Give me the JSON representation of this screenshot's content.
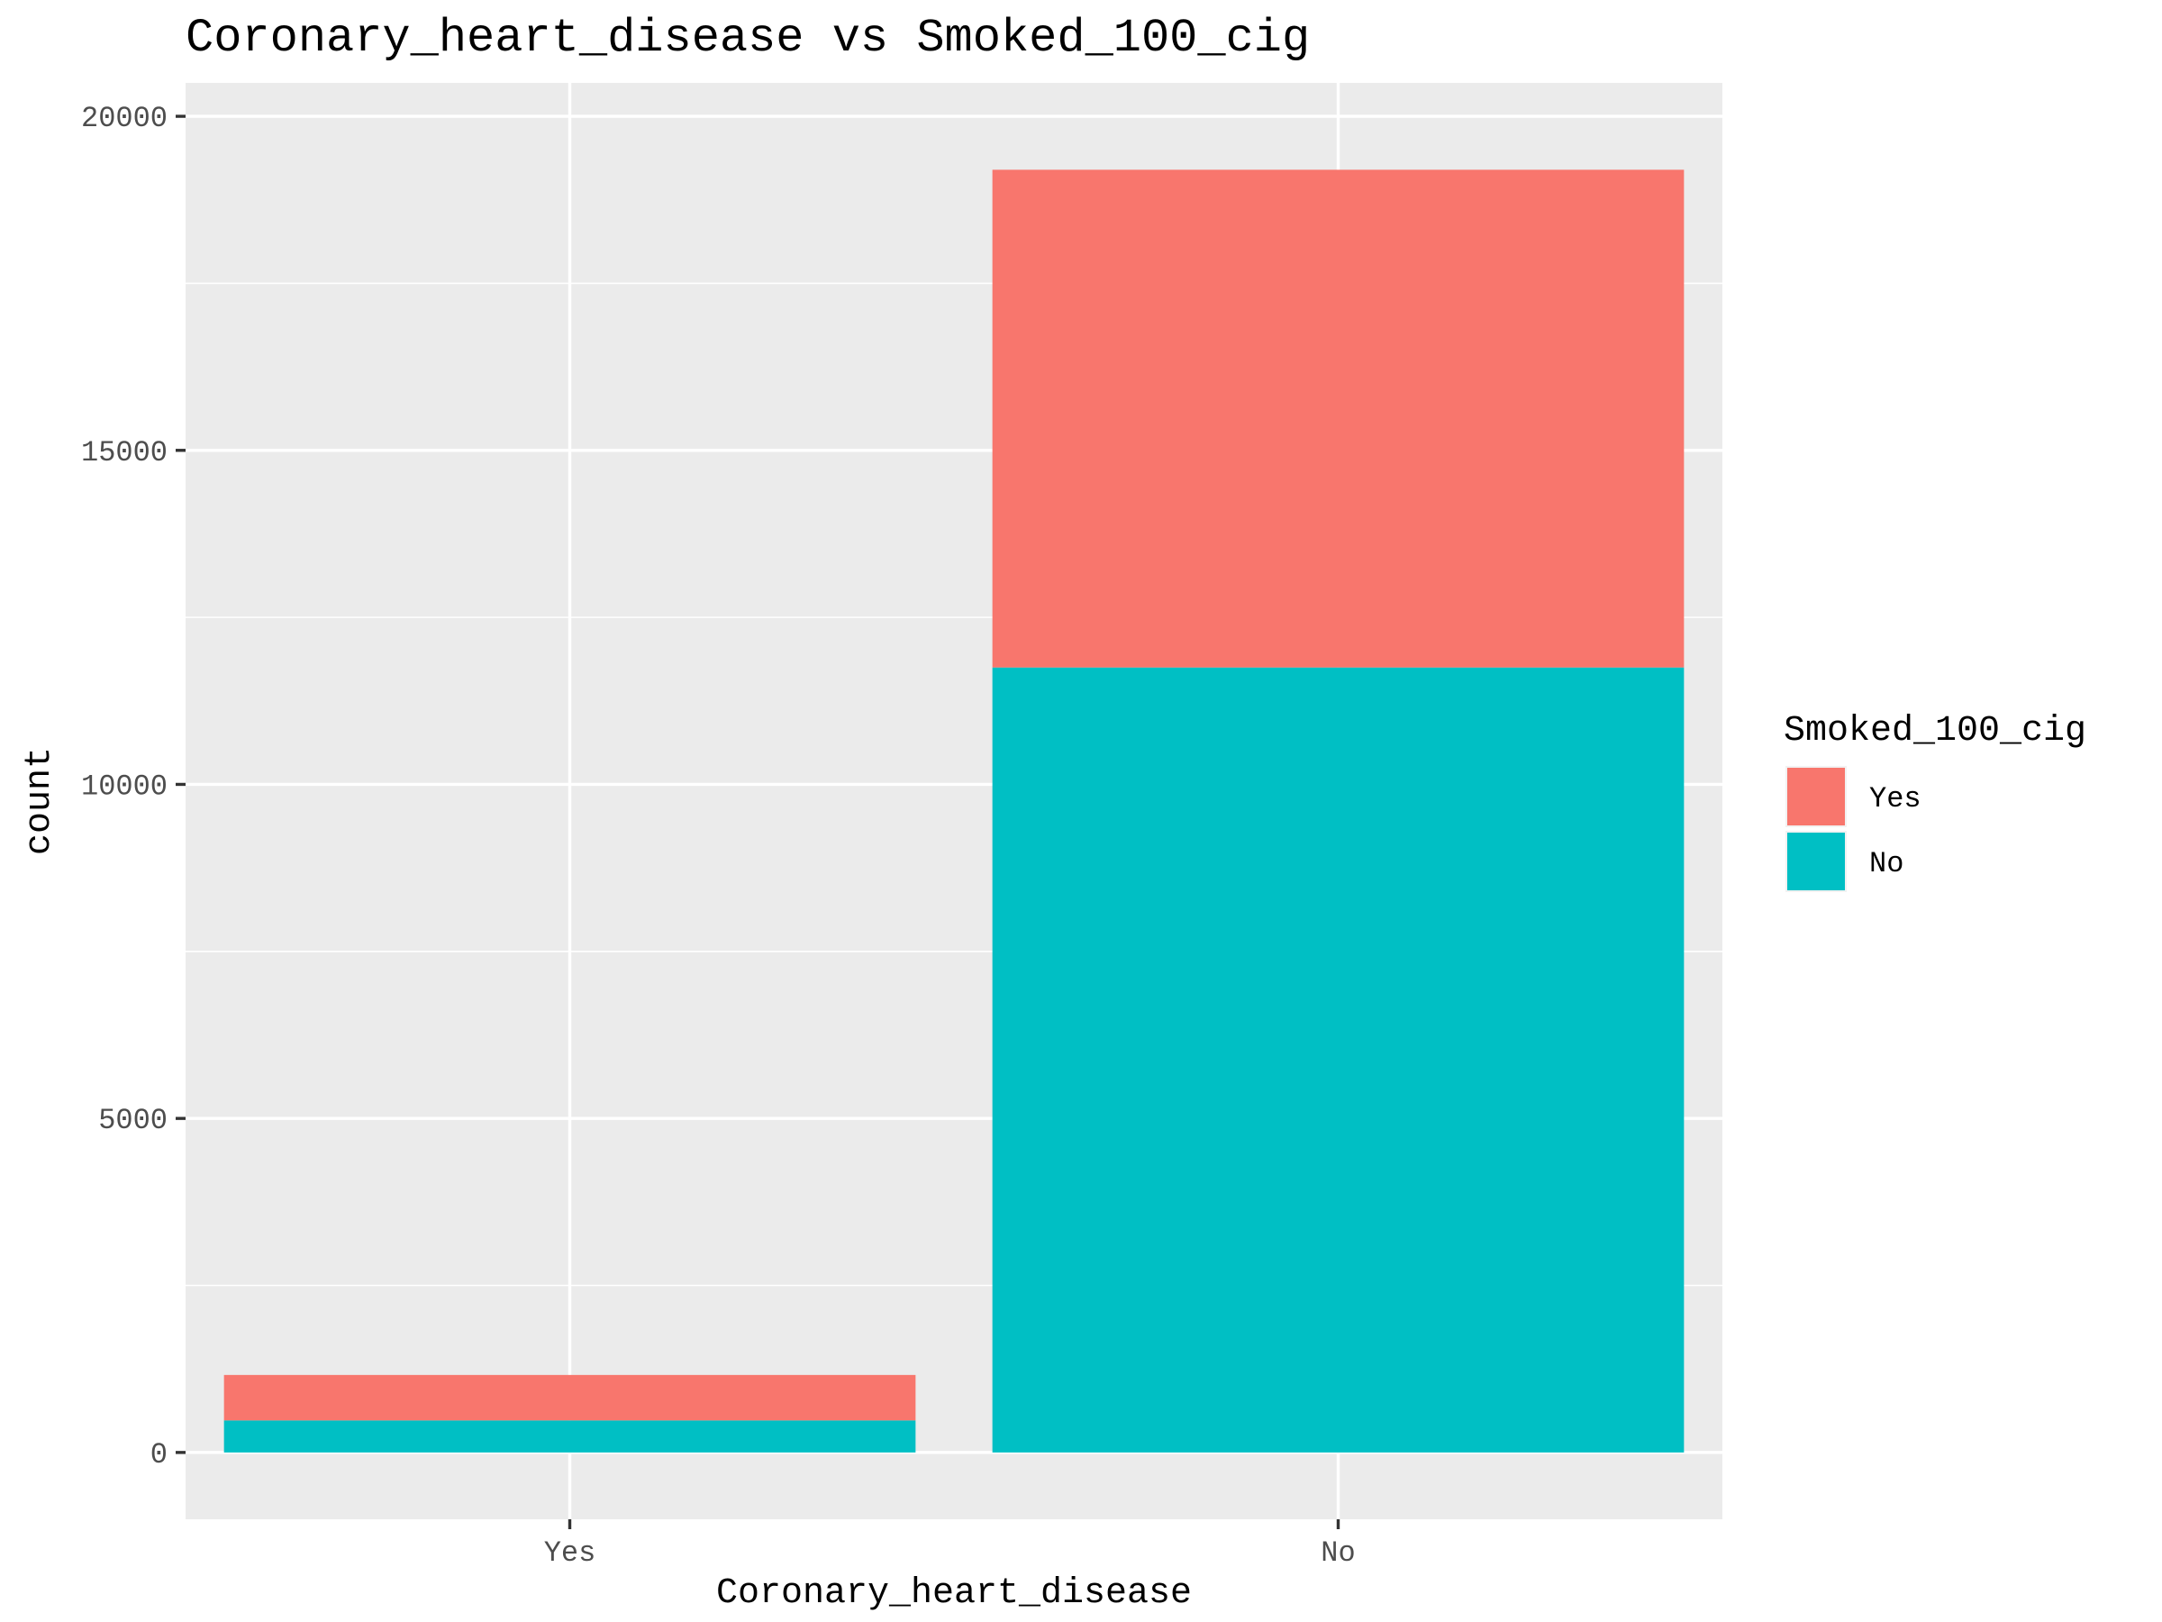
{
  "chart_data": {
    "type": "bar",
    "stacked": true,
    "title": "Coronary_heart_disease vs Smoked_100_cig",
    "xlabel": "Coronary_heart_disease",
    "ylabel": "count",
    "categories": [
      "Yes",
      "No"
    ],
    "series": [
      {
        "name": "Yes",
        "color": "#F8766D",
        "values": [
          680,
          7450
        ]
      },
      {
        "name": "No",
        "color": "#00BFC4",
        "values": [
          480,
          11750
        ]
      }
    ],
    "stack_order": [
      "No",
      "Yes"
    ],
    "ylim": [
      -1000,
      20500
    ],
    "yticks": [
      0,
      5000,
      10000,
      15000,
      20000
    ],
    "ytick_labels": [
      "0",
      "5000",
      "10000",
      "15000",
      "20000"
    ],
    "legend": {
      "title": "Smoked_100_cig",
      "position": "right",
      "entries": [
        "Yes",
        "No"
      ]
    },
    "panel_background": "#EBEBEB",
    "grid_color": "#FFFFFF",
    "grid": true
  }
}
